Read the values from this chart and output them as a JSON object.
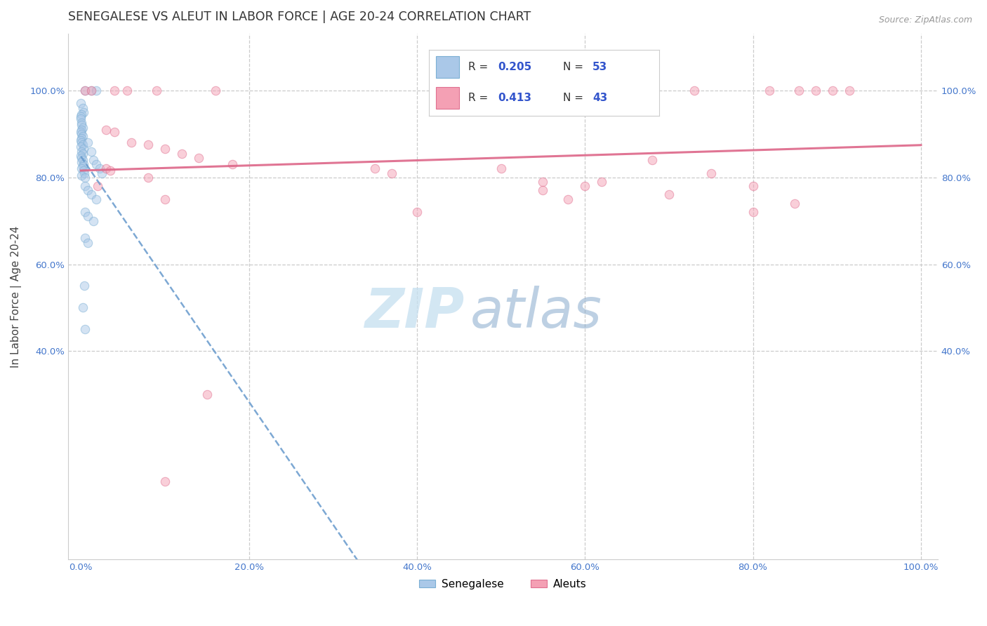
{
  "title": "SENEGALESE VS ALEUT IN LABOR FORCE | AGE 20-24 CORRELATION CHART",
  "source_text": "Source: ZipAtlas.com",
  "ylabel": "In Labor Force | Age 20-24",
  "xlim": [
    -0.015,
    1.02
  ],
  "ylim": [
    -0.08,
    1.13
  ],
  "blue_color": "#7bafd4",
  "blue_face": "#aac8e8",
  "pink_color": "#e07090",
  "pink_face": "#f4a0b4",
  "grid_color": "#cccccc",
  "bg_color": "#ffffff",
  "tick_color": "#4477cc",
  "title_color": "#333333",
  "source_color": "#999999",
  "blue_R": 0.205,
  "blue_N": 53,
  "pink_R": 0.413,
  "pink_N": 43,
  "legend_label_color": "#333333",
  "legend_R_color": "#3355cc",
  "scatter_size": 80,
  "scatter_alpha": 0.5,
  "blue_line_color": "#6699cc",
  "pink_line_color": "#dd6688",
  "blue_scatter_xy": [
    [
      0.005,
      1.0
    ],
    [
      0.012,
      1.0
    ],
    [
      0.018,
      1.0
    ],
    [
      0.0,
      0.97
    ],
    [
      0.002,
      0.96
    ],
    [
      0.003,
      0.95
    ],
    [
      0.001,
      0.945
    ],
    [
      0.0,
      0.94
    ],
    [
      0.0,
      0.935
    ],
    [
      0.001,
      0.925
    ],
    [
      0.001,
      0.92
    ],
    [
      0.002,
      0.915
    ],
    [
      0.001,
      0.91
    ],
    [
      0.0,
      0.905
    ],
    [
      0.001,
      0.9
    ],
    [
      0.002,
      0.895
    ],
    [
      0.001,
      0.89
    ],
    [
      0.0,
      0.885
    ],
    [
      0.001,
      0.88
    ],
    [
      0.002,
      0.875
    ],
    [
      0.0,
      0.87
    ],
    [
      0.003,
      0.865
    ],
    [
      0.001,
      0.86
    ],
    [
      0.002,
      0.855
    ],
    [
      0.0,
      0.85
    ],
    [
      0.001,
      0.845
    ],
    [
      0.002,
      0.84
    ],
    [
      0.001,
      0.835
    ],
    [
      0.003,
      0.83
    ],
    [
      0.002,
      0.825
    ],
    [
      0.001,
      0.82
    ],
    [
      0.003,
      0.815
    ],
    [
      0.004,
      0.81
    ],
    [
      0.001,
      0.805
    ],
    [
      0.005,
      0.8
    ],
    [
      0.008,
      0.88
    ],
    [
      0.012,
      0.86
    ],
    [
      0.015,
      0.84
    ],
    [
      0.018,
      0.83
    ],
    [
      0.022,
      0.82
    ],
    [
      0.025,
      0.81
    ],
    [
      0.005,
      0.78
    ],
    [
      0.008,
      0.77
    ],
    [
      0.012,
      0.76
    ],
    [
      0.018,
      0.75
    ],
    [
      0.005,
      0.72
    ],
    [
      0.008,
      0.71
    ],
    [
      0.015,
      0.7
    ],
    [
      0.005,
      0.66
    ],
    [
      0.008,
      0.65
    ],
    [
      0.004,
      0.55
    ],
    [
      0.002,
      0.5
    ],
    [
      0.005,
      0.45
    ]
  ],
  "pink_scatter_xy": [
    [
      0.005,
      1.0
    ],
    [
      0.012,
      1.0
    ],
    [
      0.04,
      1.0
    ],
    [
      0.055,
      1.0
    ],
    [
      0.09,
      1.0
    ],
    [
      0.16,
      1.0
    ],
    [
      0.5,
      1.0
    ],
    [
      0.73,
      1.0
    ],
    [
      0.82,
      1.0
    ],
    [
      0.855,
      1.0
    ],
    [
      0.875,
      1.0
    ],
    [
      0.895,
      1.0
    ],
    [
      0.915,
      1.0
    ],
    [
      0.03,
      0.91
    ],
    [
      0.04,
      0.905
    ],
    [
      0.06,
      0.88
    ],
    [
      0.08,
      0.875
    ],
    [
      0.1,
      0.865
    ],
    [
      0.12,
      0.855
    ],
    [
      0.14,
      0.845
    ],
    [
      0.18,
      0.83
    ],
    [
      0.03,
      0.82
    ],
    [
      0.035,
      0.815
    ],
    [
      0.37,
      0.81
    ],
    [
      0.68,
      0.84
    ],
    [
      0.4,
      0.72
    ],
    [
      0.55,
      0.79
    ],
    [
      0.58,
      0.75
    ],
    [
      0.75,
      0.81
    ],
    [
      0.08,
      0.8
    ],
    [
      0.35,
      0.82
    ],
    [
      0.55,
      0.77
    ],
    [
      0.62,
      0.79
    ],
    [
      0.8,
      0.78
    ],
    [
      0.85,
      0.74
    ],
    [
      0.02,
      0.78
    ],
    [
      0.1,
      0.75
    ],
    [
      0.15,
      0.3
    ],
    [
      0.1,
      0.1
    ],
    [
      0.5,
      0.82
    ],
    [
      0.6,
      0.78
    ],
    [
      0.7,
      0.76
    ],
    [
      0.8,
      0.72
    ]
  ]
}
